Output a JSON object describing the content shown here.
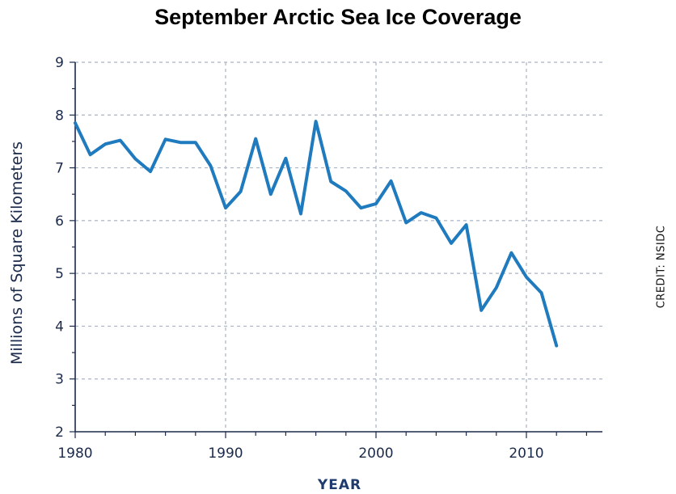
{
  "chart_data": {
    "type": "line",
    "title": "September Arctic Sea Ice Coverage",
    "xlabel": "YEAR",
    "ylabel": "Millions of Square Kilometers",
    "credit": "CREDIT: NSIDC",
    "xlim": [
      1980,
      2015
    ],
    "ylim": [
      2,
      9
    ],
    "x_ticks": [
      1980,
      1990,
      2000,
      2010
    ],
    "y_ticks": [
      2,
      3,
      4,
      5,
      6,
      7,
      8,
      9
    ],
    "grid": true,
    "line_color": "#1f7bbd",
    "grid_color": "#a9b4c6",
    "series": [
      {
        "x": [
          1980,
          1981,
          1982,
          1983,
          1984,
          1985,
          1986,
          1987,
          1988,
          1989,
          1990,
          1991,
          1992,
          1993,
          1994,
          1995,
          1996,
          1997,
          1998,
          1999,
          2000,
          2001,
          2002,
          2003,
          2004,
          2005,
          2006,
          2007,
          2008,
          2009,
          2010,
          2011,
          2012
        ],
        "values": [
          7.85,
          7.25,
          7.45,
          7.52,
          7.17,
          6.93,
          7.54,
          7.48,
          7.48,
          7.04,
          6.24,
          6.55,
          7.55,
          6.5,
          7.18,
          6.13,
          7.88,
          6.74,
          6.56,
          6.24,
          6.32,
          6.75,
          5.96,
          6.15,
          6.05,
          5.57,
          5.92,
          4.3,
          4.73,
          5.39,
          4.93,
          4.63,
          3.63
        ]
      }
    ]
  }
}
